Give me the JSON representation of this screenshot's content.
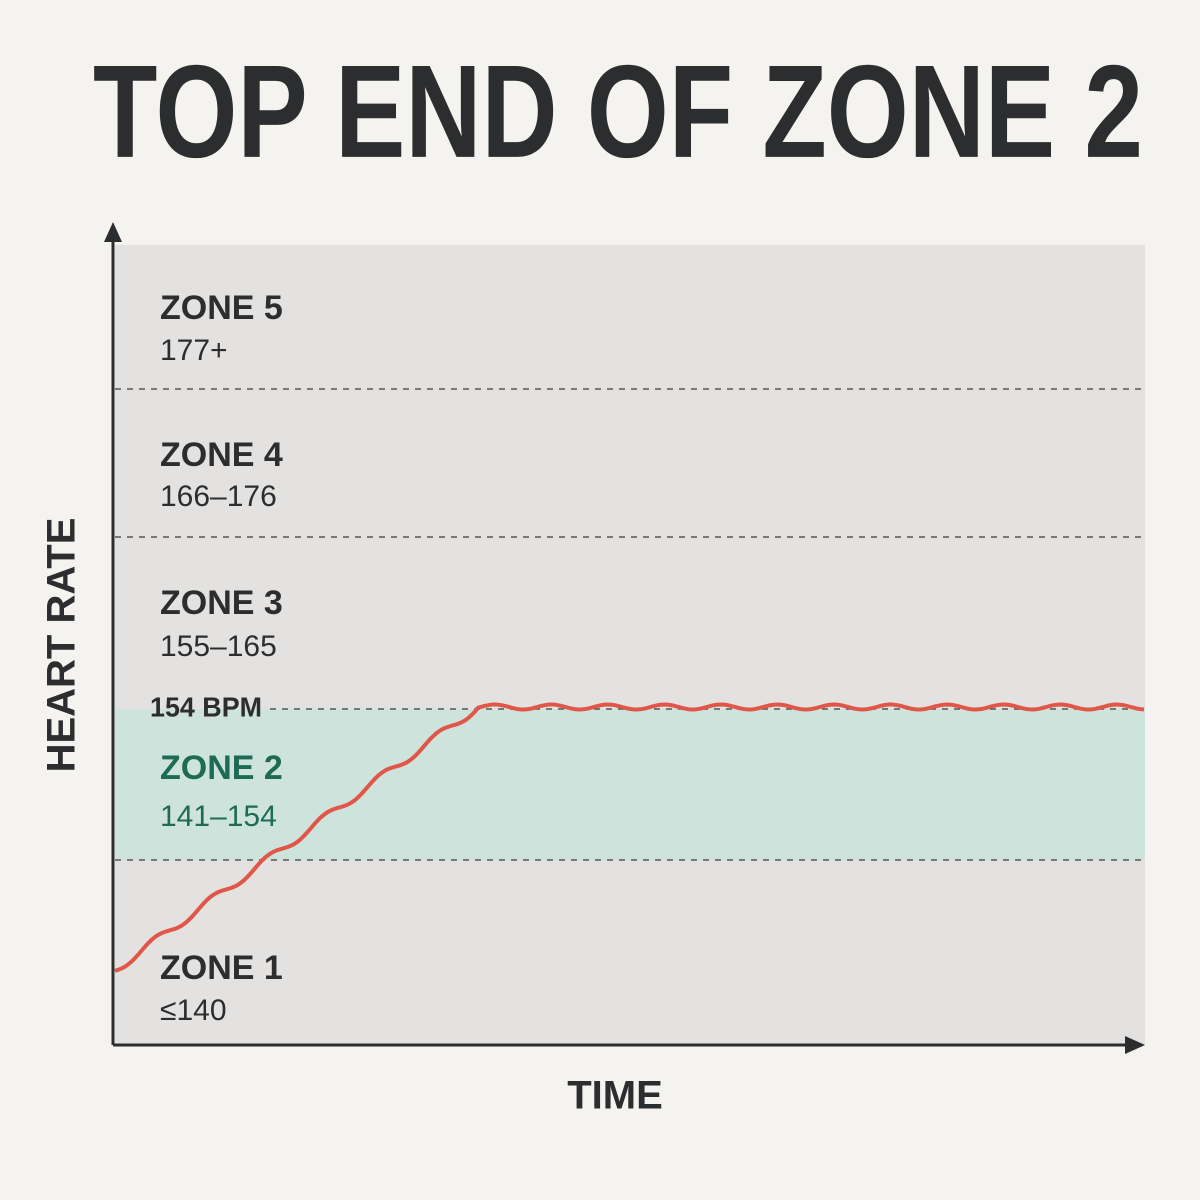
{
  "title": "TOP END OF ZONE 2",
  "axes": {
    "y": "HEART RATE",
    "x": "TIME"
  },
  "marker": "154 BPM",
  "zones": [
    {
      "name": "ZONE 5",
      "range": "177+"
    },
    {
      "name": "ZONE 4",
      "range": "166–176"
    },
    {
      "name": "ZONE 3",
      "range": "155–165"
    },
    {
      "name": "ZONE 2",
      "range": "141–154"
    },
    {
      "name": "ZONE 1",
      "range": "≤140"
    }
  ]
}
